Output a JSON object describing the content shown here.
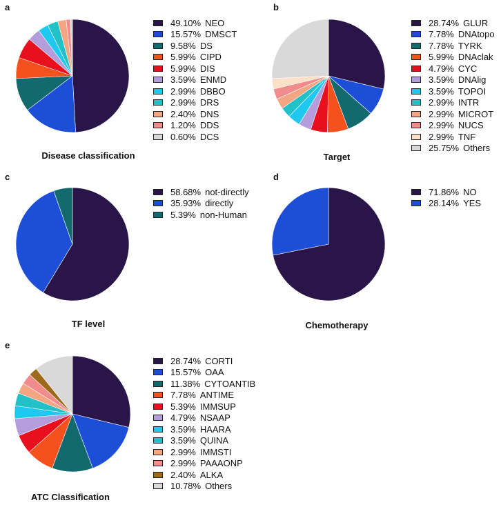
{
  "chart_data": [
    {
      "type": "pie",
      "panel_letter": "a",
      "title": "Disease classification",
      "slices": [
        {
          "label": "NEO",
          "pct_label": "49.10%",
          "value": 49.1,
          "color": "#2a1548"
        },
        {
          "label": "DMSCT",
          "pct_label": "15.57%",
          "value": 15.57,
          "color": "#1d4ed8"
        },
        {
          "label": "DS",
          "pct_label": "9.58%",
          "value": 9.58,
          "color": "#126a6e"
        },
        {
          "label": "CIPD",
          "pct_label": "5.99%",
          "value": 5.99,
          "color": "#f4511e"
        },
        {
          "label": "DIS",
          "pct_label": "5.99%",
          "value": 5.99,
          "color": "#e8101c"
        },
        {
          "label": "ENMD",
          "pct_label": "3.59%",
          "value": 3.59,
          "color": "#b39ddb"
        },
        {
          "label": "DBBO",
          "pct_label": "2.99%",
          "value": 2.99,
          "color": "#1ec8ee"
        },
        {
          "label": "DRS",
          "pct_label": "2.99%",
          "value": 2.99,
          "color": "#22c1c8"
        },
        {
          "label": "DNS",
          "pct_label": "2.40%",
          "value": 2.4,
          "color": "#f4a582"
        },
        {
          "label": "DDS",
          "pct_label": "1.20%",
          "value": 1.2,
          "color": "#f28b8b"
        },
        {
          "label": "DCS",
          "pct_label": "0.60%",
          "value": 0.6,
          "color": "#d9d9d9"
        }
      ]
    },
    {
      "type": "pie",
      "panel_letter": "b",
      "title": "Target",
      "slices": [
        {
          "label": "GLUR",
          "pct_label": "28.74%",
          "value": 28.74,
          "color": "#2a1548"
        },
        {
          "label": "DNAtopo",
          "pct_label": "7.78%",
          "value": 7.78,
          "color": "#1d4ed8"
        },
        {
          "label": "TYRK",
          "pct_label": "7.78%",
          "value": 7.78,
          "color": "#126a6e"
        },
        {
          "label": "DNAclak",
          "pct_label": "5.99%",
          "value": 5.99,
          "color": "#f4511e"
        },
        {
          "label": "CYC",
          "pct_label": "4.79%",
          "value": 4.79,
          "color": "#e8101c"
        },
        {
          "label": "DNAlig",
          "pct_label": "3.59%",
          "value": 3.59,
          "color": "#b39ddb"
        },
        {
          "label": "TOPOI",
          "pct_label": "3.59%",
          "value": 3.59,
          "color": "#1ec8ee"
        },
        {
          "label": "INTR",
          "pct_label": "2.99%",
          "value": 2.99,
          "color": "#22c1c8"
        },
        {
          "label": "MICROT",
          "pct_label": "2.99%",
          "value": 2.99,
          "color": "#f4a582"
        },
        {
          "label": "NUCS",
          "pct_label": "2.99%",
          "value": 2.99,
          "color": "#f28b8b"
        },
        {
          "label": "TNF",
          "pct_label": "2.99%",
          "value": 2.99,
          "color": "#fde0c8"
        },
        {
          "label": "Others",
          "pct_label": "25.75%",
          "value": 25.75,
          "color": "#d9d9d9"
        }
      ]
    },
    {
      "type": "pie",
      "panel_letter": "c",
      "title": "TF level",
      "slices": [
        {
          "label": "not-directly",
          "pct_label": "58.68%",
          "value": 58.68,
          "color": "#2a1548"
        },
        {
          "label": "directly",
          "pct_label": "35.93%",
          "value": 35.93,
          "color": "#1d4ed8"
        },
        {
          "label": "non-Human",
          "pct_label": "5.39%",
          "value": 5.39,
          "color": "#126a6e"
        }
      ]
    },
    {
      "type": "pie",
      "panel_letter": "d",
      "title": "Chemotherapy",
      "slices": [
        {
          "label": "NO",
          "pct_label": "71.86%",
          "value": 71.86,
          "color": "#2a1548"
        },
        {
          "label": "YES",
          "pct_label": "28.14%",
          "value": 28.14,
          "color": "#1d4ed8"
        }
      ]
    },
    {
      "type": "pie",
      "panel_letter": "e",
      "title": "ATC Classification",
      "slices": [
        {
          "label": "CORTI",
          "pct_label": "28.74%",
          "value": 28.74,
          "color": "#2a1548"
        },
        {
          "label": "OAA",
          "pct_label": "15.57%",
          "value": 15.57,
          "color": "#1d4ed8"
        },
        {
          "label": "CYTOANTIB",
          "pct_label": "11.38%",
          "value": 11.38,
          "color": "#126a6e"
        },
        {
          "label": "ANTIME",
          "pct_label": "7.78%",
          "value": 7.78,
          "color": "#f4511e"
        },
        {
          "label": "IMMSUP",
          "pct_label": "5.39%",
          "value": 5.39,
          "color": "#e8101c"
        },
        {
          "label": "NSAAP",
          "pct_label": "4.79%",
          "value": 4.79,
          "color": "#b39ddb"
        },
        {
          "label": "HAARA",
          "pct_label": "3.59%",
          "value": 3.59,
          "color": "#1ec8ee"
        },
        {
          "label": "QUINA",
          "pct_label": "3.59%",
          "value": 3.59,
          "color": "#22c1c8"
        },
        {
          "label": "IMMSTI",
          "pct_label": "2.99%",
          "value": 2.99,
          "color": "#f4a582"
        },
        {
          "label": "PAAAONP",
          "pct_label": "2.99%",
          "value": 2.99,
          "color": "#f28b8b"
        },
        {
          "label": "ALKA",
          "pct_label": "2.40%",
          "value": 2.4,
          "color": "#9c6a1a"
        },
        {
          "label": "Others",
          "pct_label": "10.78%",
          "value": 10.78,
          "color": "#d9d9d9"
        }
      ]
    }
  ]
}
